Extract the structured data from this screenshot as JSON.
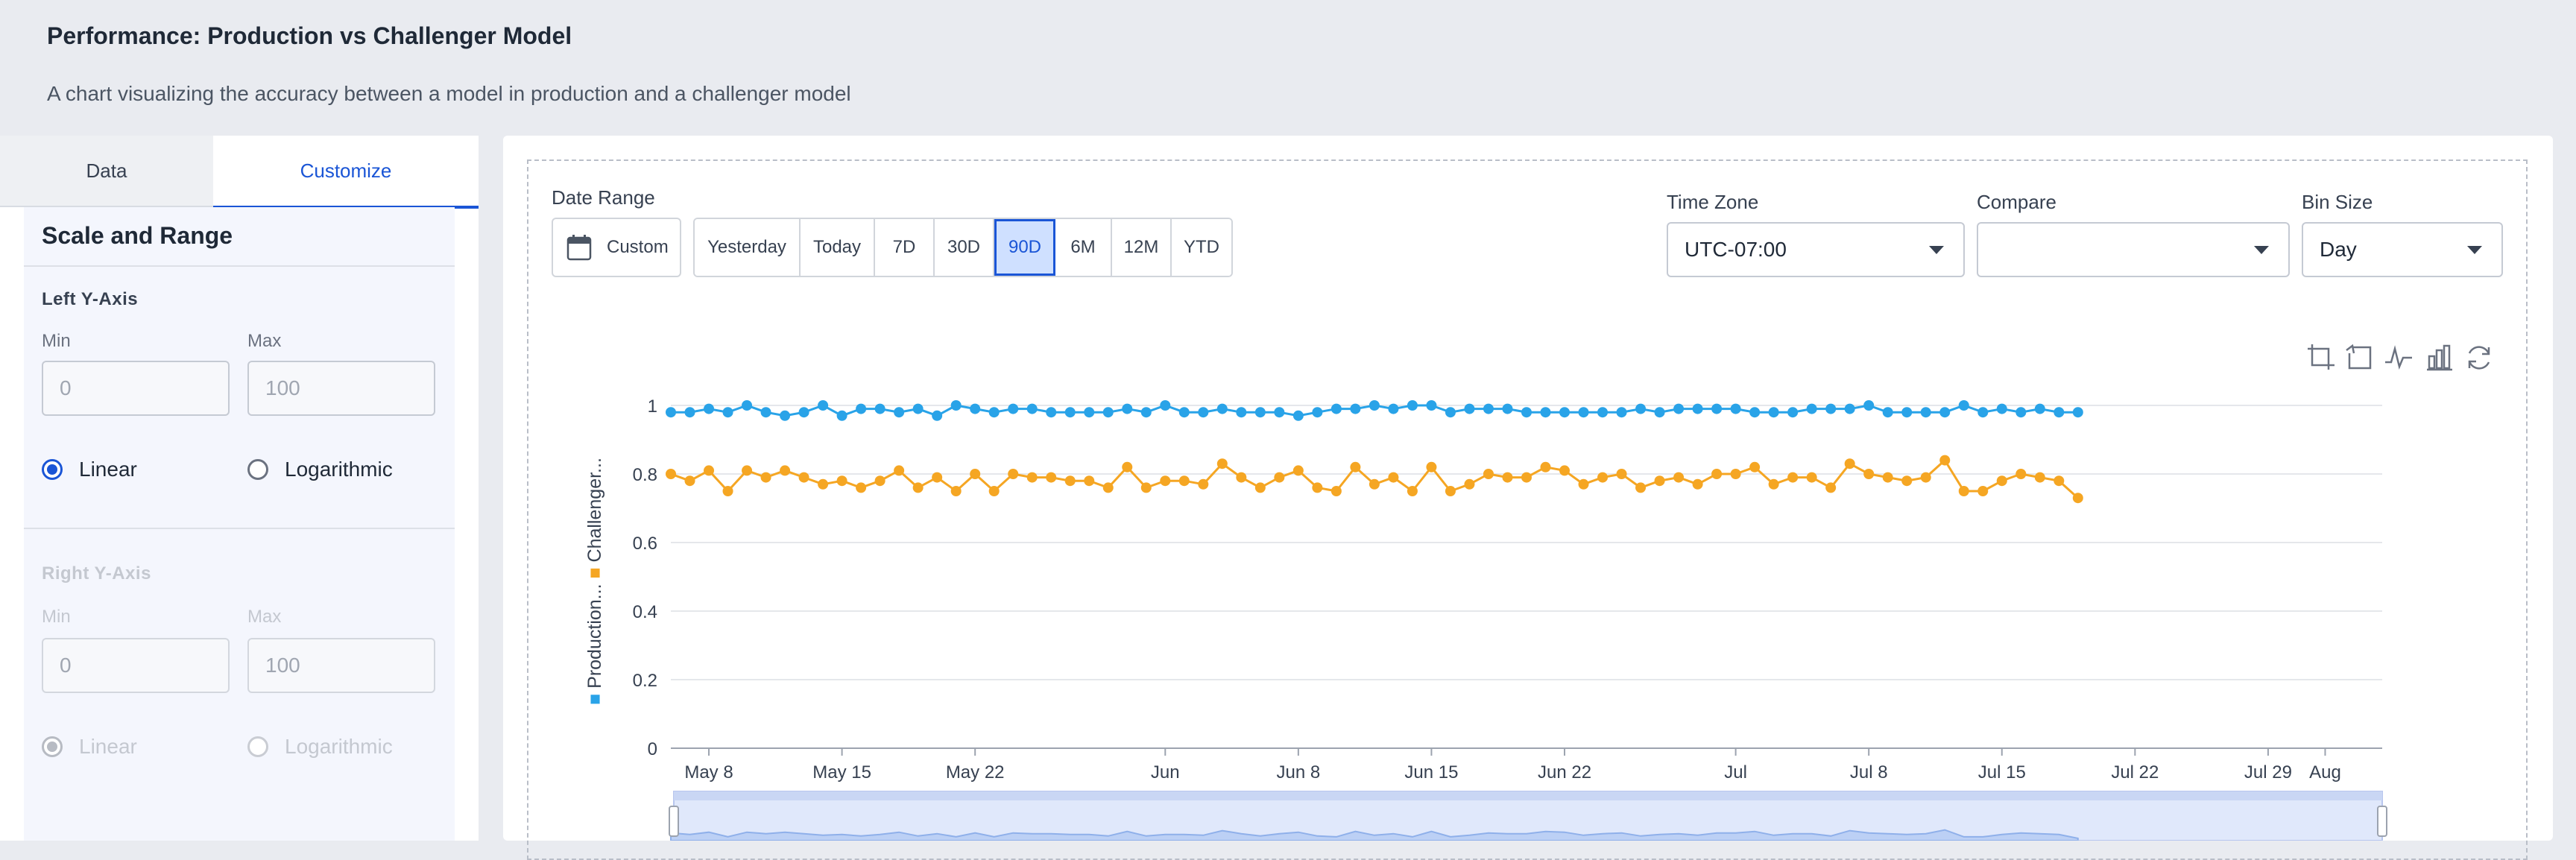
{
  "header": {
    "title": "Performance: Production vs Challenger Model",
    "subtitle": "A chart visualizing the accuracy between a model in production and a challenger model"
  },
  "tabs": [
    {
      "label": "Data",
      "active": false
    },
    {
      "label": "Customize",
      "active": true
    }
  ],
  "settings": {
    "section_title": "Scale and Range",
    "left_axis": {
      "title": "Left Y-Axis",
      "min_label": "Min",
      "min_placeholder": "0",
      "max_label": "Max",
      "max_placeholder": "100",
      "scale_options": [
        "Linear",
        "Logarithmic"
      ],
      "selected_scale": "Linear"
    },
    "right_axis": {
      "title": "Right Y-Axis",
      "min_label": "Min",
      "min_placeholder": "0",
      "max_label": "Max",
      "max_placeholder": "100",
      "scale_options": [
        "Linear",
        "Logarithmic"
      ],
      "selected_scale": "Linear",
      "disabled": true
    }
  },
  "controls": {
    "date_range_label": "Date Range",
    "custom_label": "Custom",
    "ranges": [
      "Yesterday",
      "Today",
      "7D",
      "30D",
      "90D",
      "6M",
      "12M",
      "YTD"
    ],
    "active_range": "90D",
    "time_zone_label": "Time Zone",
    "time_zone_value": "UTC-07:00",
    "compare_label": "Compare",
    "compare_value": "",
    "bin_size_label": "Bin Size",
    "bin_size_value": "Day"
  },
  "toolbar_icons": [
    "zoom-icon",
    "zoom-reset-icon",
    "line-chart-icon",
    "bar-chart-icon",
    "refresh-icon"
  ],
  "colors": {
    "accent": "#1a55d6",
    "production": "#29a3e8",
    "challenger": "#f5a623"
  },
  "chart_data": {
    "type": "line",
    "ylabel_production": "Production...",
    "ylabel_challenger": "Challenger...",
    "ylim": [
      0,
      1
    ],
    "yticks": [
      0,
      0.2,
      0.4,
      0.6,
      0.8,
      1
    ],
    "xdomain": [
      "2024-05-06",
      "2024-08-04"
    ],
    "xticks": [
      {
        "label": "May 8",
        "date": "2024-05-08"
      },
      {
        "label": "May 15",
        "date": "2024-05-15"
      },
      {
        "label": "May 22",
        "date": "2024-05-22"
      },
      {
        "label": "Jun",
        "date": "2024-06-01"
      },
      {
        "label": "Jun 8",
        "date": "2024-06-08"
      },
      {
        "label": "Jun 15",
        "date": "2024-06-15"
      },
      {
        "label": "Jun 22",
        "date": "2024-06-22"
      },
      {
        "label": "Jul",
        "date": "2024-07-01"
      },
      {
        "label": "Jul 8",
        "date": "2024-07-08"
      },
      {
        "label": "Jul 15",
        "date": "2024-07-15"
      },
      {
        "label": "Jul 22",
        "date": "2024-07-22"
      },
      {
        "label": "Jul 29",
        "date": "2024-07-29"
      },
      {
        "label": "Aug",
        "date": "2024-08-01"
      }
    ],
    "x": [
      "2024-05-06",
      "2024-05-07",
      "2024-05-08",
      "2024-05-09",
      "2024-05-10",
      "2024-05-11",
      "2024-05-12",
      "2024-05-13",
      "2024-05-14",
      "2024-05-15",
      "2024-05-16",
      "2024-05-17",
      "2024-05-18",
      "2024-05-19",
      "2024-05-20",
      "2024-05-21",
      "2024-05-22",
      "2024-05-23",
      "2024-05-24",
      "2024-05-25",
      "2024-05-26",
      "2024-05-27",
      "2024-05-28",
      "2024-05-29",
      "2024-05-30",
      "2024-05-31",
      "2024-06-01",
      "2024-06-02",
      "2024-06-03",
      "2024-06-04",
      "2024-06-05",
      "2024-06-06",
      "2024-06-07",
      "2024-06-08",
      "2024-06-09",
      "2024-06-10",
      "2024-06-11",
      "2024-06-12",
      "2024-06-13",
      "2024-06-14",
      "2024-06-15",
      "2024-06-16",
      "2024-06-17",
      "2024-06-18",
      "2024-06-19",
      "2024-06-20",
      "2024-06-21",
      "2024-06-22",
      "2024-06-23",
      "2024-06-24",
      "2024-06-25",
      "2024-06-26",
      "2024-06-27",
      "2024-06-28",
      "2024-06-29",
      "2024-06-30",
      "2024-07-01",
      "2024-07-02",
      "2024-07-03",
      "2024-07-04",
      "2024-07-05",
      "2024-07-06",
      "2024-07-07",
      "2024-07-08",
      "2024-07-09",
      "2024-07-10",
      "2024-07-11",
      "2024-07-12",
      "2024-07-13",
      "2024-07-14",
      "2024-07-15",
      "2024-07-16",
      "2024-07-17",
      "2024-07-18",
      "2024-07-19"
    ],
    "series": [
      {
        "name": "Production...",
        "values": [
          0.98,
          0.98,
          0.99,
          0.98,
          1.0,
          0.98,
          0.97,
          0.98,
          1.0,
          0.97,
          0.99,
          0.99,
          0.98,
          0.99,
          0.97,
          1.0,
          0.99,
          0.98,
          0.99,
          0.99,
          0.98,
          0.98,
          0.98,
          0.98,
          0.99,
          0.98,
          1.0,
          0.98,
          0.98,
          0.99,
          0.98,
          0.98,
          0.98,
          0.97,
          0.98,
          0.99,
          0.99,
          1.0,
          0.99,
          1.0,
          1.0,
          0.98,
          0.99,
          0.99,
          0.99,
          0.98,
          0.98,
          0.98,
          0.98,
          0.98,
          0.98,
          0.99,
          0.98,
          0.99,
          0.99,
          0.99,
          0.99,
          0.98,
          0.98,
          0.98,
          0.99,
          0.99,
          0.99,
          1.0,
          0.98,
          0.98,
          0.98,
          0.98,
          1.0,
          0.98,
          0.99,
          0.98,
          0.99,
          0.98,
          0.98
        ]
      },
      {
        "name": "Challenger...",
        "values": [
          0.8,
          0.78,
          0.81,
          0.75,
          0.81,
          0.79,
          0.81,
          0.79,
          0.77,
          0.78,
          0.76,
          0.78,
          0.81,
          0.76,
          0.79,
          0.75,
          0.8,
          0.75,
          0.8,
          0.79,
          0.79,
          0.78,
          0.78,
          0.76,
          0.82,
          0.76,
          0.78,
          0.78,
          0.77,
          0.83,
          0.79,
          0.76,
          0.79,
          0.81,
          0.76,
          0.75,
          0.82,
          0.77,
          0.79,
          0.75,
          0.82,
          0.75,
          0.77,
          0.8,
          0.79,
          0.79,
          0.82,
          0.81,
          0.77,
          0.79,
          0.8,
          0.76,
          0.78,
          0.79,
          0.77,
          0.8,
          0.8,
          0.82,
          0.77,
          0.79,
          0.79,
          0.76,
          0.83,
          0.8,
          0.79,
          0.78,
          0.79,
          0.84,
          0.75,
          0.75,
          0.78,
          0.8,
          0.79,
          0.78,
          0.73
        ]
      }
    ]
  }
}
